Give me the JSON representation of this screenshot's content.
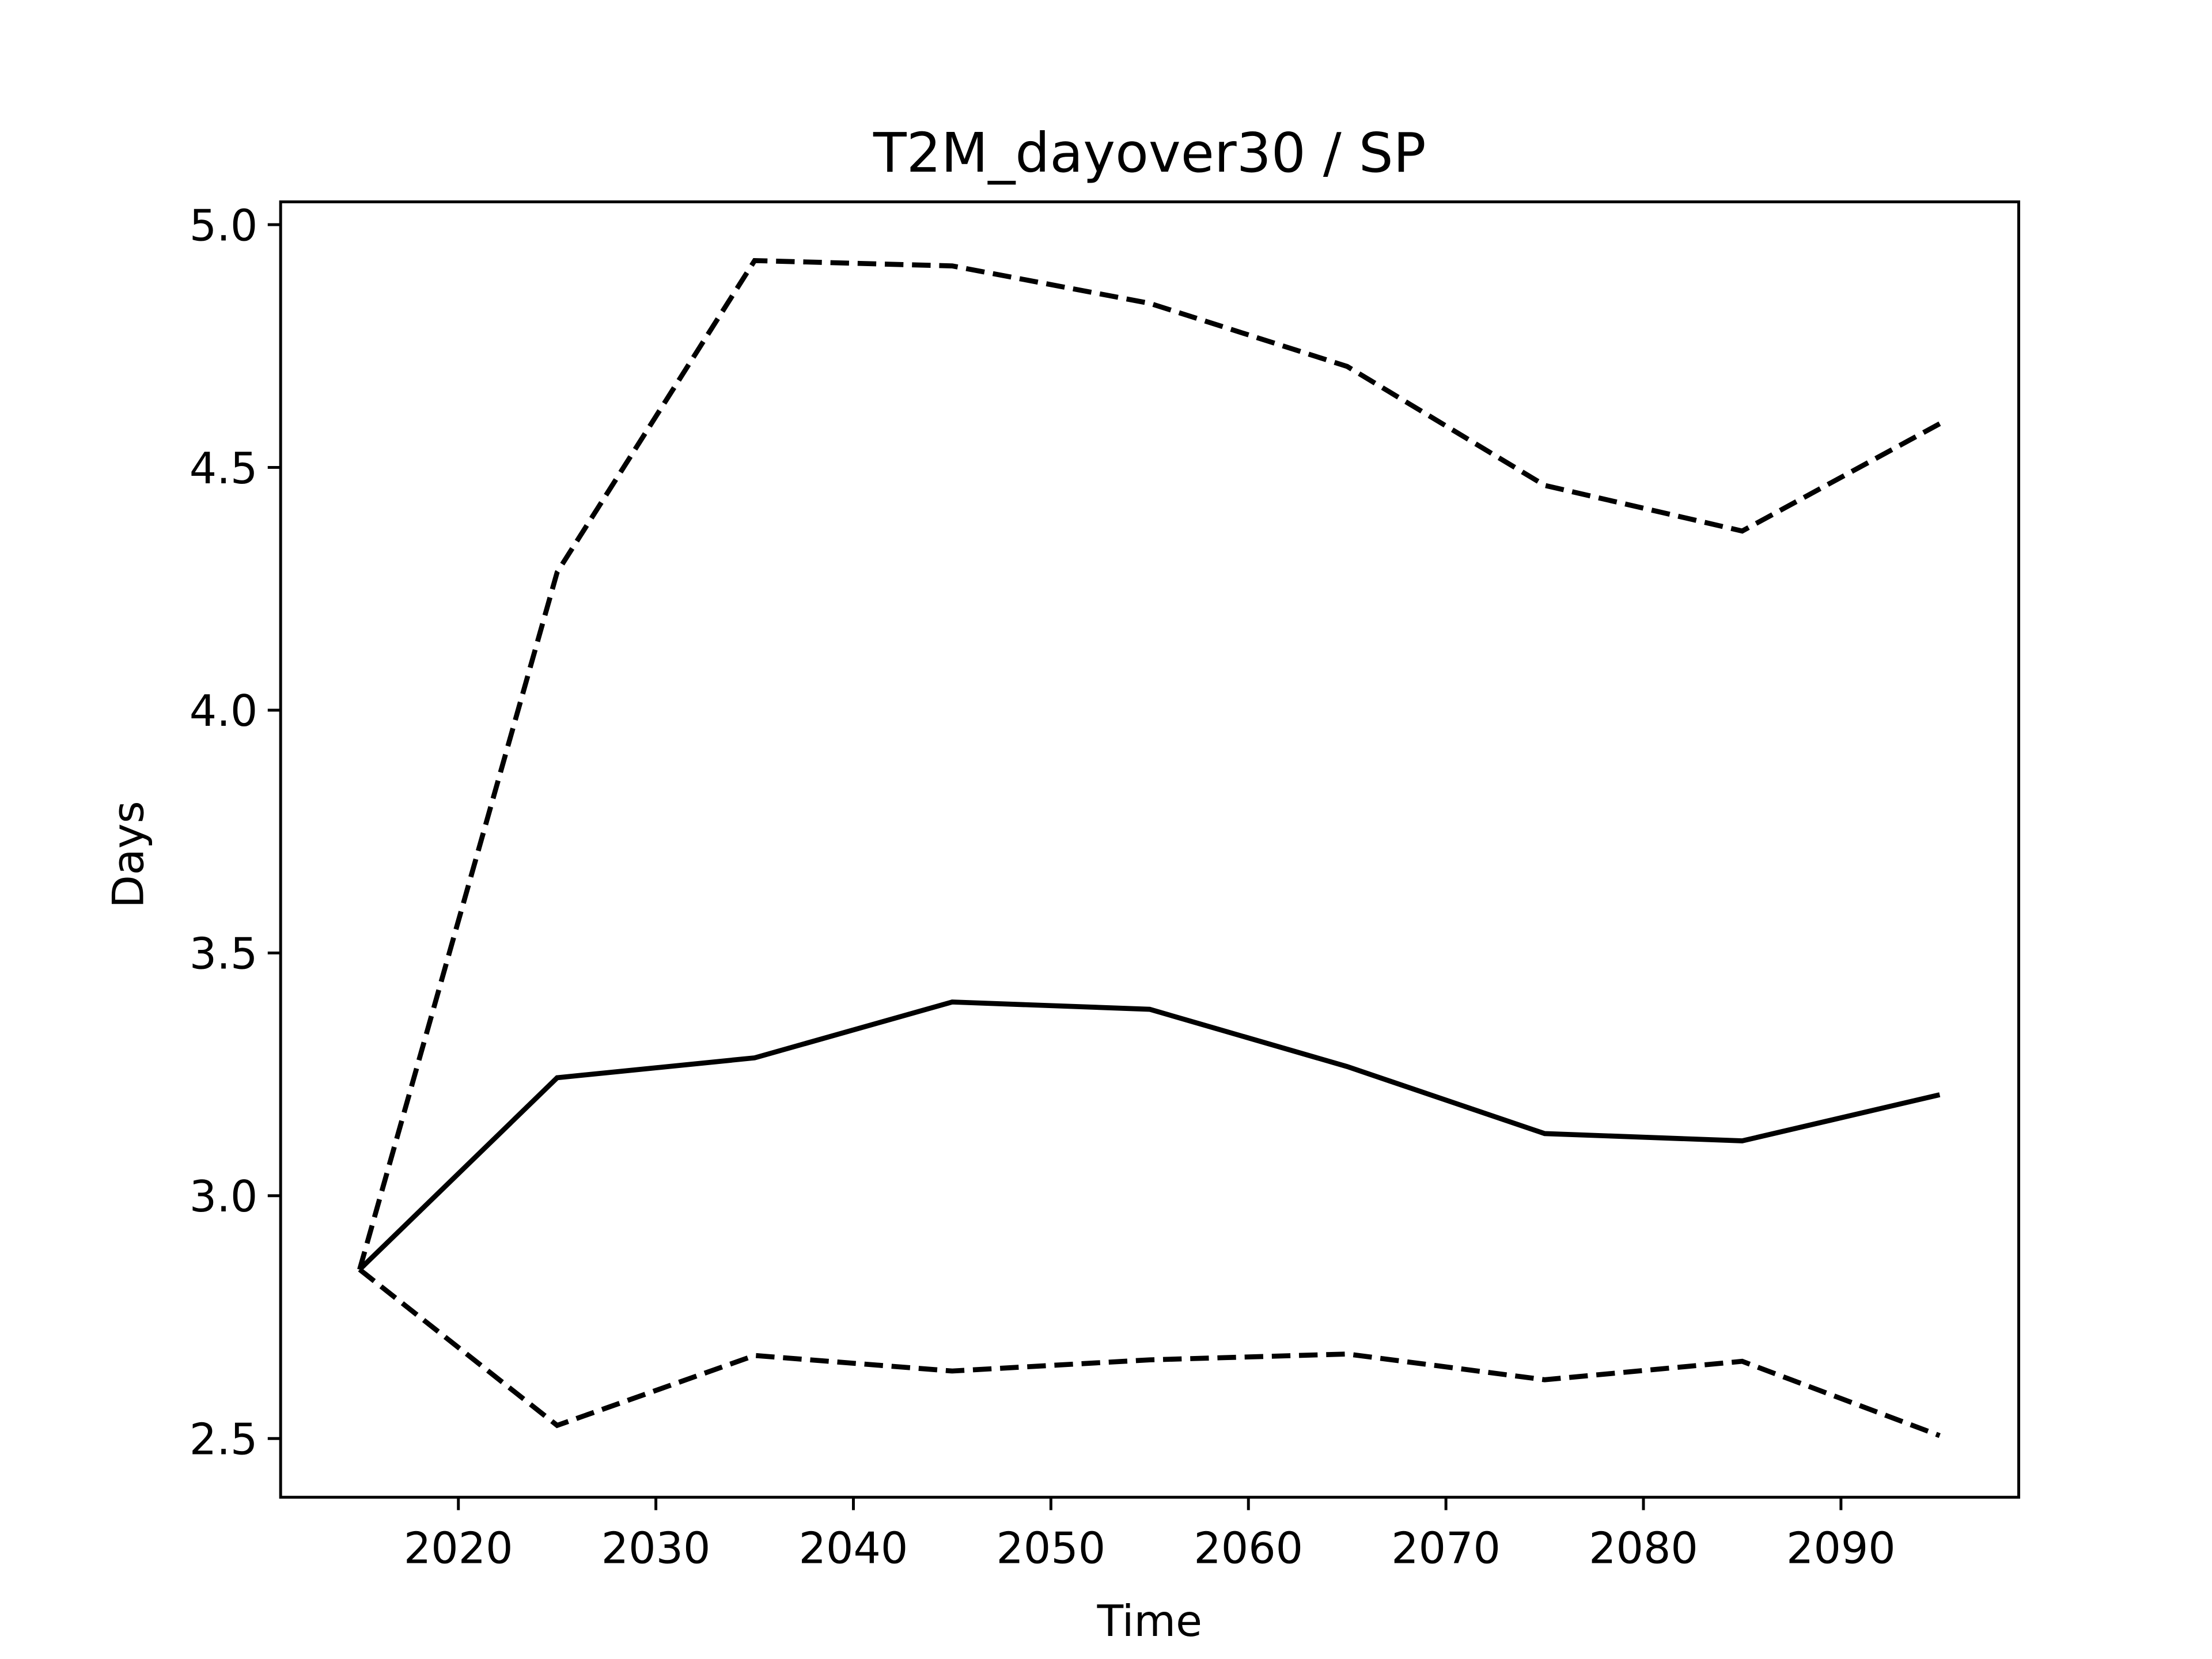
{
  "chart_data": {
    "type": "line",
    "title": "T2M_dayover30 / SP",
    "x_label": "Time",
    "y_label": "Days",
    "x": [
      2015,
      2025,
      2035,
      2045,
      2055,
      2065,
      2075,
      2085,
      2095
    ],
    "series": [
      {
        "color": "#000000",
        "linestyle": "solid",
        "values": [
          2.848,
          3.243,
          3.284,
          3.399,
          3.384,
          3.266,
          3.128,
          3.113,
          3.208
        ]
      },
      {
        "color": "#000000",
        "linestyle": "dashed",
        "values": [
          2.848,
          4.284,
          4.926,
          4.915,
          4.838,
          4.708,
          4.463,
          4.369,
          4.59
        ]
      },
      {
        "color": "#000000",
        "linestyle": "dashed",
        "values": [
          2.848,
          2.527,
          2.671,
          2.639,
          2.662,
          2.674,
          2.621,
          2.659,
          2.506
        ]
      }
    ],
    "xlim": [
      2011,
      2099
    ],
    "xticks": [
      2020,
      2030,
      2040,
      2050,
      2060,
      2070,
      2080,
      2090
    ],
    "ylim": [
      2.379,
      5.047
    ],
    "yticks": [
      2.5,
      {
        "value": 3,
        "label": "3.0"
      },
      3.5,
      {
        "value": 4,
        "label": "4.0"
      },
      4.5,
      {
        "value": 5,
        "label": "5.0"
      }
    ],
    "grid": false
  }
}
